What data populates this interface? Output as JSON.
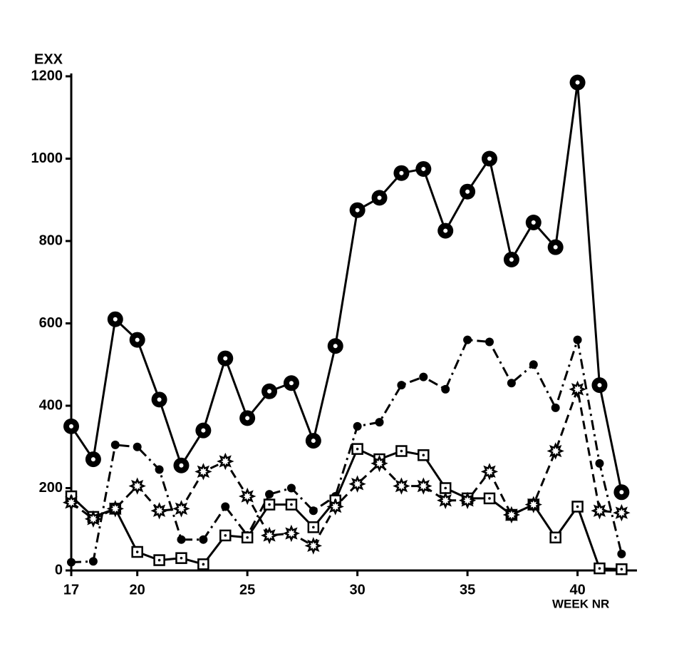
{
  "chart_data": {
    "type": "line",
    "y_label": "EXX",
    "x_label": "WEEK NR",
    "x": [
      17,
      18,
      19,
      20,
      21,
      22,
      23,
      24,
      25,
      26,
      27,
      28,
      29,
      30,
      31,
      32,
      33,
      34,
      35,
      36,
      37,
      38,
      39,
      40,
      41,
      42
    ],
    "xlim": [
      17,
      42.7
    ],
    "xticks": [
      17,
      20,
      25,
      30,
      35,
      40
    ],
    "ylim": [
      0,
      1200
    ],
    "yticks": [
      0,
      200,
      400,
      600,
      800,
      1000,
      1200
    ],
    "series": [
      {
        "color": "#000000",
        "line_style": "solid",
        "marker": "big-circle",
        "values": [
          350,
          270,
          610,
          560,
          415,
          255,
          340,
          515,
          370,
          435,
          455,
          315,
          545,
          875,
          905,
          965,
          975,
          825,
          920,
          1000,
          755,
          845,
          785,
          1185,
          450,
          190
        ]
      },
      {
        "color": "#000000",
        "line_style": "dash-dot",
        "marker": "dot",
        "values": [
          20,
          22,
          305,
          300,
          245,
          75,
          75,
          155,
          85,
          185,
          200,
          145,
          180,
          350,
          360,
          450,
          470,
          440,
          560,
          555,
          455,
          500,
          395,
          560,
          260,
          40
        ]
      },
      {
        "color": "#000000",
        "line_style": "solid",
        "marker": "square",
        "values": [
          180,
          130,
          150,
          45,
          25,
          30,
          15,
          85,
          80,
          160,
          160,
          105,
          170,
          295,
          270,
          290,
          280,
          200,
          175,
          175,
          135,
          160,
          80,
          155,
          5,
          3
        ]
      },
      {
        "color": "#000000",
        "line_style": "dashed",
        "marker": "star",
        "values": [
          165,
          125,
          150,
          205,
          145,
          150,
          240,
          265,
          180,
          85,
          90,
          60,
          155,
          210,
          260,
          205,
          205,
          170,
          170,
          240,
          135,
          160,
          290,
          440,
          145,
          140
        ]
      }
    ]
  }
}
